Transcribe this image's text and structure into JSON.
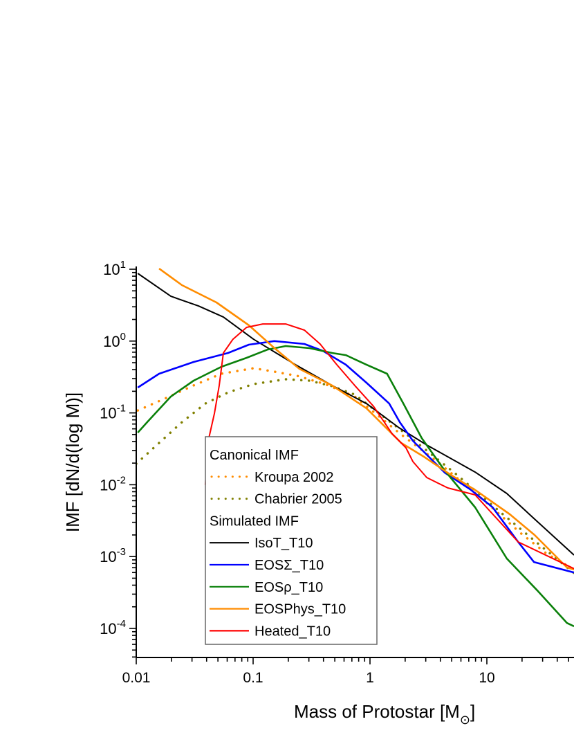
{
  "chart_data": {
    "type": "line",
    "title": "",
    "xlabel": "Mass of Protostar [M",
    "xlabel_subscript": "⊙",
    "xlabel_suffix": "]",
    "ylabel": "IMF [dN/d(log M)]",
    "xscale": "log",
    "yscale": "log",
    "xlim": [
      0.01,
      55.7
    ],
    "ylim": [
      4e-05,
      10
    ],
    "xticks": [
      {
        "value": 0.01,
        "label": "0.01"
      },
      {
        "value": 0.1,
        "label": "0.1"
      },
      {
        "value": 1,
        "label": "1"
      },
      {
        "value": 10,
        "label": "10"
      }
    ],
    "yticks": [
      {
        "value": 10,
        "base": "10",
        "exp": "1"
      },
      {
        "value": 1,
        "base": "10",
        "exp": "0"
      },
      {
        "value": 0.1,
        "base": "10",
        "exp": "-1"
      },
      {
        "value": 0.01,
        "base": "10",
        "exp": "-2"
      },
      {
        "value": 0.001,
        "base": "10",
        "exp": "-3"
      },
      {
        "value": 0.0001,
        "base": "10",
        "exp": "-4"
      }
    ],
    "grid": false,
    "legend": {
      "placement": "lower-left",
      "groups": [
        {
          "heading": "Canonical IMF",
          "entries": [
            "kroupa",
            "chabrier"
          ]
        },
        {
          "heading": "Simulated IMF",
          "entries": [
            "isot",
            "eossigma",
            "eosrho",
            "eosphys",
            "heated"
          ]
        }
      ]
    },
    "series": [
      {
        "id": "kroupa",
        "name": "Kroupa 2002",
        "color": "#ff8c00",
        "style": "dotted",
        "x": [
          0.0103,
          0.018,
          0.031,
          0.0534,
          0.101,
          0.152,
          0.239,
          0.412,
          0.74,
          1.85,
          3.77,
          9.46,
          19.4,
          32.4,
          55.7
        ],
        "y": [
          0.108,
          0.161,
          0.241,
          0.351,
          0.419,
          0.375,
          0.328,
          0.252,
          0.169,
          0.0499,
          0.021,
          0.00605,
          0.00213,
          0.0011,
          0.00066
        ]
      },
      {
        "id": "chabrier",
        "name": "Chabrier 2005",
        "color": "#808000",
        "style": "dotted",
        "x": [
          0.01,
          0.0157,
          0.0246,
          0.039,
          0.0611,
          0.101,
          0.19,
          0.303,
          0.473,
          0.74,
          2.03,
          5.27,
          13.7,
          28.0,
          55.7
        ],
        "y": [
          0.0196,
          0.0382,
          0.0743,
          0.135,
          0.193,
          0.252,
          0.294,
          0.281,
          0.236,
          0.18,
          0.0509,
          0.0147,
          0.00389,
          0.00147,
          0.00059
        ]
      },
      {
        "id": "isot",
        "name": "IsoT_T10",
        "color": "#000000",
        "style": "solid",
        "x": [
          0.0103,
          0.0198,
          0.0341,
          0.0557,
          0.101,
          0.23,
          0.473,
          0.933,
          1.77,
          3.06,
          7.93,
          14.8,
          25.6,
          55.7
        ],
        "y": [
          8.75,
          4.2,
          3.08,
          2.16,
          1.06,
          0.469,
          0.241,
          0.135,
          0.0622,
          0.0357,
          0.015,
          0.00756,
          0.00333,
          0.00105
        ]
      },
      {
        "id": "eossigma",
        "name": "EOSΣ_T10",
        "color": "#0000ff",
        "style": "solid",
        "x": [
          0.0103,
          0.0157,
          0.031,
          0.0611,
          0.092,
          0.152,
          0.275,
          0.396,
          0.621,
          0.933,
          1.46,
          1.8,
          2.33,
          3.06,
          4.37,
          7.2,
          11.2,
          18.5,
          25.3,
          55.7
        ],
        "y": [
          0.225,
          0.351,
          0.512,
          0.683,
          0.891,
          1.0,
          0.912,
          0.73,
          0.469,
          0.263,
          0.135,
          0.0743,
          0.0408,
          0.0262,
          0.0147,
          0.00863,
          0.00485,
          0.0016,
          0.00084,
          0.0006
        ]
      },
      {
        "id": "eosrho",
        "name": "EOSρ_T10",
        "color": "#0a800a",
        "style": "solid",
        "x": [
          0.0103,
          0.0124,
          0.0198,
          0.031,
          0.0534,
          0.088,
          0.133,
          0.19,
          0.303,
          0.473,
          0.621,
          0.933,
          1.4,
          1.93,
          2.77,
          4.37,
          7.93,
          14.8,
          26.9,
          48.5,
          55.7
        ],
        "y": [
          0.0532,
          0.0743,
          0.169,
          0.281,
          0.438,
          0.585,
          0.762,
          0.853,
          0.797,
          0.683,
          0.638,
          0.469,
          0.351,
          0.135,
          0.0446,
          0.0157,
          0.00485,
          0.00094,
          0.00034,
          0.000119,
          0.000107
        ]
      },
      {
        "id": "eosphys",
        "name": "EOSPhys_T10",
        "color": "#ff8c00",
        "style": "solid",
        "x": [
          0.0157,
          0.0246,
          0.0486,
          0.092,
          0.152,
          0.249,
          0.473,
          0.933,
          1.85,
          2.9,
          4.99,
          8.26,
          15.7,
          25.6,
          48.5,
          55.7
        ],
        "y": [
          10.2,
          6.0,
          3.45,
          1.66,
          0.8,
          0.41,
          0.241,
          0.116,
          0.0382,
          0.0245,
          0.0135,
          0.0081,
          0.00389,
          0.002,
          0.000705,
          0.00066
        ]
      },
      {
        "id": "heated",
        "name": "Heated_T10",
        "color": "#ff0000",
        "style": "solid",
        "x": [
          0.039,
          0.0418,
          0.0467,
          0.0513,
          0.0557,
          0.0672,
          0.088,
          0.121,
          0.19,
          0.275,
          0.374,
          0.52,
          0.74,
          1.07,
          1.55,
          2.03,
          2.33,
          3.06,
          4.63,
          7.93,
          18.5,
          55.7
        ],
        "y": [
          0.01,
          0.0446,
          0.099,
          0.241,
          0.683,
          1.06,
          1.55,
          1.73,
          1.73,
          1.42,
          0.912,
          0.469,
          0.241,
          0.124,
          0.0509,
          0.0327,
          0.021,
          0.0126,
          0.00903,
          0.00723,
          0.0016,
          0.00068
        ]
      }
    ]
  }
}
